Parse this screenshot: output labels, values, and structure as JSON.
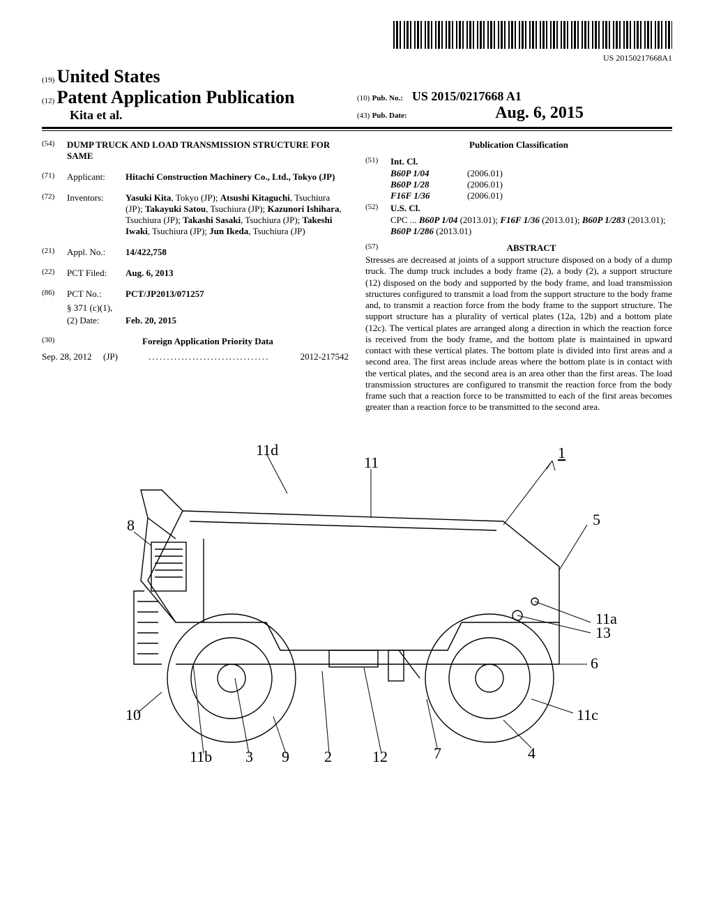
{
  "barcode_text": "US 20150217668A1",
  "header": {
    "country_code": "(19)",
    "country": "United States",
    "pub_code": "(12)",
    "pub_type": "Patent Application Publication",
    "authors": "Kita et al.",
    "pub_num_code": "(10)",
    "pub_num_label": "Pub. No.:",
    "pub_num": "US 2015/0217668 A1",
    "pub_date_code": "(43)",
    "pub_date_label": "Pub. Date:",
    "pub_date": "Aug. 6, 2015"
  },
  "left": {
    "title_code": "(54)",
    "title": "DUMP TRUCK AND LOAD TRANSMISSION STRUCTURE FOR SAME",
    "applicant_code": "(71)",
    "applicant_label": "Applicant:",
    "applicant": "Hitachi Construction Machinery Co., Ltd., Tokyo (JP)",
    "inventors_code": "(72)",
    "inventors_label": "Inventors:",
    "inventors": "Yasuki Kita, Tokyo (JP); Atsushi Kitaguchi, Tsuchiura (JP); Takayuki Satou, Tsuchiura (JP); Kazunori Ishihara, Tsuchiura (JP); Takashi Sasaki, Tsuchiura (JP); Takeshi Iwaki, Tsuchiura (JP); Jun Ikeda, Tsuchiura (JP)",
    "appl_code": "(21)",
    "appl_label": "Appl. No.:",
    "appl_num": "14/422,758",
    "pct_filed_code": "(22)",
    "pct_filed_label": "PCT Filed:",
    "pct_filed": "Aug. 6, 2013",
    "pct_no_code": "(86)",
    "pct_no_label": "PCT No.:",
    "pct_no": "PCT/JP2013/071257",
    "s371_label": "§ 371 (c)(1),",
    "s371_date_label": "(2) Date:",
    "s371_date": "Feb. 20, 2015",
    "priority_code": "(30)",
    "priority_title": "Foreign Application Priority Data",
    "priority_date": "Sep. 28, 2012",
    "priority_country": "(JP)",
    "priority_num": "2012-217542"
  },
  "right": {
    "classification_title": "Publication Classification",
    "intcl_code": "(51)",
    "intcl_label": "Int. Cl.",
    "intcl": [
      {
        "code": "B60P 1/04",
        "year": "(2006.01)"
      },
      {
        "code": "B60P 1/28",
        "year": "(2006.01)"
      },
      {
        "code": "F16F 1/36",
        "year": "(2006.01)"
      }
    ],
    "uscl_code": "(52)",
    "uscl_label": "U.S. Cl.",
    "cpc_label": "CPC",
    "cpc": "... B60P 1/04 (2013.01); F16F 1/36 (2013.01); B60P 1/283 (2013.01); B60P 1/286 (2013.01)",
    "abstract_code": "(57)",
    "abstract_title": "ABSTRACT",
    "abstract": "Stresses are decreased at joints of a support structure disposed on a body of a dump truck. The dump truck includes a body frame (2), a body (2), a support structure (12) disposed on the body and supported by the body frame, and load transmission structures configured to transmit a load from the support structure to the body frame and, to transmit a reaction force from the body frame to the support structure. The support structure has a plurality of vertical plates (12a, 12b) and a bottom plate (12c). The vertical plates are arranged along a direction in which the reaction force is received from the body frame, and the bottom plate is maintained in upward contact with these vertical plates. The bottom plate is divided into first areas and a second area. The first areas include areas where the bottom plate is in contact with the vertical plates, and the second area is an area other than the first areas. The load transmission structures are configured to transmit the reaction force from the body frame such that a reaction force to be transmitted to each of the first areas becomes greater than a reaction force to be transmitted to the second area."
  },
  "figure": {
    "labels": [
      "1",
      "2",
      "3",
      "4",
      "5",
      "6",
      "7",
      "8",
      "9",
      "10",
      "11",
      "11a",
      "11b",
      "11c",
      "11d",
      "12",
      "13"
    ]
  }
}
